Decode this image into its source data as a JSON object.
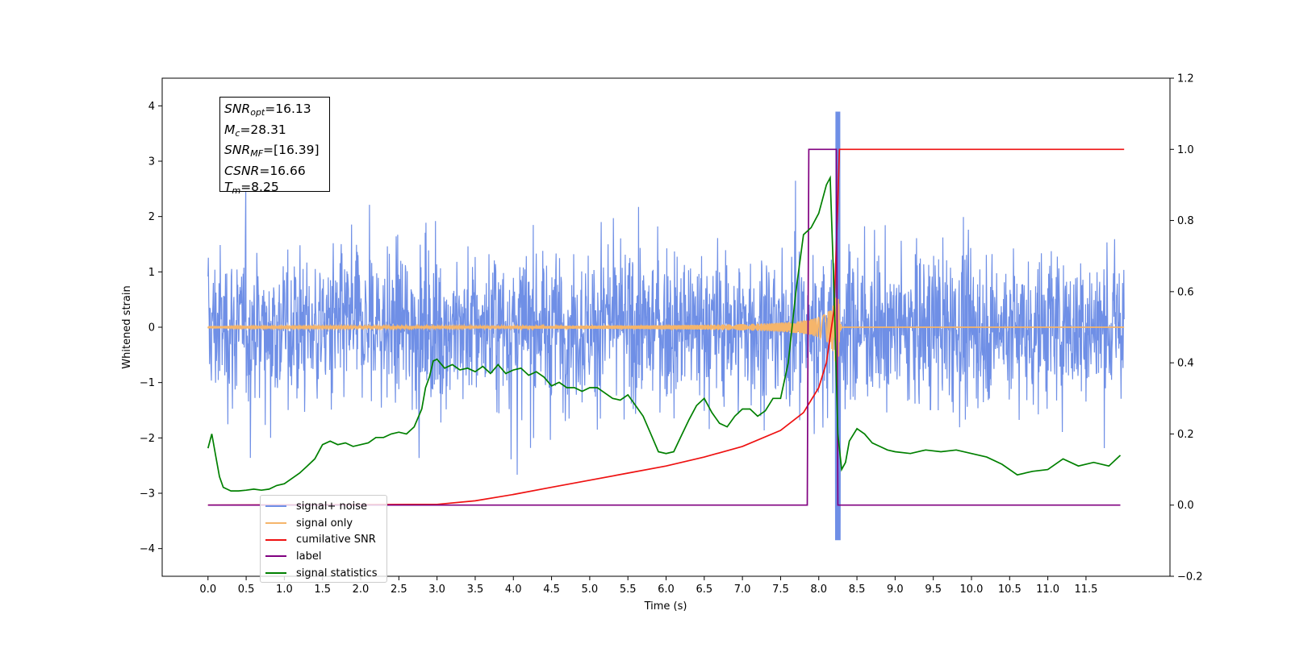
{
  "chart_data": {
    "type": "line",
    "xlabel": "Time (s)",
    "ylabel": "Whitened strain",
    "xlim": [
      -0.6,
      12.6
    ],
    "ylim": [
      -4.5,
      4.5
    ],
    "y2lim": [
      -0.2,
      1.2
    ],
    "x_ticks": [
      "0.0",
      "0.5",
      "1.0",
      "1.5",
      "2.0",
      "2.5",
      "3.0",
      "3.5",
      "4.0",
      "4.5",
      "5.0",
      "5.5",
      "6.0",
      "6.5",
      "7.0",
      "7.5",
      "8.0",
      "8.5",
      "9.0",
      "9.5",
      "10.0",
      "10.5",
      "11.0",
      "11.5"
    ],
    "y_ticks": [
      "4",
      "3",
      "2",
      "1",
      "0",
      "−1",
      "−2",
      "−3",
      "−4"
    ],
    "y2_ticks": [
      "1.2",
      "1.0",
      "0.8",
      "0.6",
      "0.4",
      "0.2",
      "0.0",
      "−0.2"
    ],
    "stats": [
      {
        "sym": "SNR",
        "sub": "opt",
        "value": "=16.13"
      },
      {
        "sym": "M",
        "sub": "c",
        "value": "=28.31"
      },
      {
        "sym": "SNR",
        "sub": "MF",
        "value": "=[16.39]"
      },
      {
        "sym": "CSNR",
        "sub": "",
        "value": "=16.66"
      },
      {
        "sym": "T",
        "sub": "m",
        "value": "=8.25"
      }
    ],
    "series": [
      {
        "name": "signal+ noise",
        "color": "#6f8fe6",
        "axis": "left",
        "kind": "noise",
        "x_range": [
          0,
          12
        ],
        "typical_amplitude": 1.3,
        "max_value": 4.1,
        "min_value": -4.05
      },
      {
        "name": "signal only",
        "color": "#f5b56b",
        "axis": "left",
        "kind": "chirp",
        "merger_time": 8.25,
        "peak_amplitude": 1.3
      },
      {
        "name": "cumilative SNR",
        "color": "#ee1111",
        "axis": "right",
        "x": [
          0,
          3.0,
          3.5,
          4.0,
          4.5,
          5.0,
          5.5,
          6.0,
          6.5,
          7.0,
          7.5,
          7.8,
          8.0,
          8.1,
          8.2,
          8.25,
          8.27,
          12.0
        ],
        "y": [
          0,
          0.002,
          0.012,
          0.03,
          0.05,
          0.07,
          0.09,
          0.11,
          0.135,
          0.165,
          0.21,
          0.26,
          0.33,
          0.4,
          0.55,
          0.85,
          1.0,
          1.0
        ]
      },
      {
        "name": "label",
        "color": "#800080",
        "axis": "right",
        "x": [
          0,
          7.85,
          7.87,
          8.23,
          8.25,
          11.95
        ],
        "y": [
          0,
          0,
          1,
          1,
          0,
          0
        ]
      },
      {
        "name": "signal statistics",
        "color": "#008000",
        "axis": "right",
        "x": [
          0.0,
          0.05,
          0.1,
          0.15,
          0.2,
          0.25,
          0.3,
          0.4,
          0.5,
          0.6,
          0.7,
          0.8,
          0.9,
          1.0,
          1.1,
          1.2,
          1.3,
          1.4,
          1.5,
          1.6,
          1.7,
          1.8,
          1.9,
          2.0,
          2.1,
          2.2,
          2.3,
          2.4,
          2.5,
          2.6,
          2.7,
          2.8,
          2.85,
          2.9,
          2.95,
          3.0,
          3.1,
          3.2,
          3.3,
          3.4,
          3.5,
          3.6,
          3.7,
          3.8,
          3.9,
          4.0,
          4.1,
          4.2,
          4.3,
          4.4,
          4.5,
          4.6,
          4.7,
          4.8,
          4.9,
          5.0,
          5.1,
          5.2,
          5.3,
          5.4,
          5.5,
          5.6,
          5.7,
          5.8,
          5.9,
          6.0,
          6.1,
          6.2,
          6.3,
          6.4,
          6.5,
          6.6,
          6.7,
          6.8,
          6.9,
          7.0,
          7.1,
          7.2,
          7.3,
          7.4,
          7.5,
          7.6,
          7.7,
          7.8,
          7.9,
          8.0,
          8.1,
          8.15,
          8.2,
          8.25,
          8.3,
          8.35,
          8.4,
          8.5,
          8.6,
          8.7,
          8.8,
          8.9,
          9.0,
          9.2,
          9.4,
          9.6,
          9.8,
          10.0,
          10.2,
          10.4,
          10.6,
          10.8,
          11.0,
          11.2,
          11.4,
          11.6,
          11.8,
          11.95
        ],
        "y": [
          0.16,
          0.2,
          0.14,
          0.08,
          0.05,
          0.045,
          0.04,
          0.04,
          0.042,
          0.045,
          0.042,
          0.045,
          0.055,
          0.06,
          0.075,
          0.09,
          0.11,
          0.13,
          0.17,
          0.18,
          0.17,
          0.175,
          0.165,
          0.17,
          0.175,
          0.19,
          0.19,
          0.2,
          0.205,
          0.2,
          0.22,
          0.27,
          0.33,
          0.36,
          0.405,
          0.41,
          0.385,
          0.395,
          0.38,
          0.385,
          0.375,
          0.39,
          0.37,
          0.395,
          0.37,
          0.38,
          0.385,
          0.365,
          0.375,
          0.36,
          0.335,
          0.345,
          0.33,
          0.33,
          0.32,
          0.33,
          0.33,
          0.315,
          0.3,
          0.295,
          0.31,
          0.28,
          0.25,
          0.2,
          0.15,
          0.145,
          0.15,
          0.195,
          0.24,
          0.28,
          0.3,
          0.26,
          0.23,
          0.22,
          0.25,
          0.27,
          0.27,
          0.25,
          0.265,
          0.3,
          0.3,
          0.4,
          0.6,
          0.76,
          0.78,
          0.82,
          0.9,
          0.92,
          0.6,
          0.2,
          0.1,
          0.12,
          0.18,
          0.215,
          0.2,
          0.175,
          0.165,
          0.155,
          0.15,
          0.145,
          0.155,
          0.15,
          0.155,
          0.145,
          0.135,
          0.115,
          0.085,
          0.095,
          0.1,
          0.13,
          0.11,
          0.12,
          0.11,
          0.14
        ]
      }
    ],
    "legend": [
      "signal+ noise",
      "signal only",
      "cumilative SNR",
      "label",
      "signal statistics"
    ],
    "legend_placement": "lower-left",
    "grid": false
  }
}
